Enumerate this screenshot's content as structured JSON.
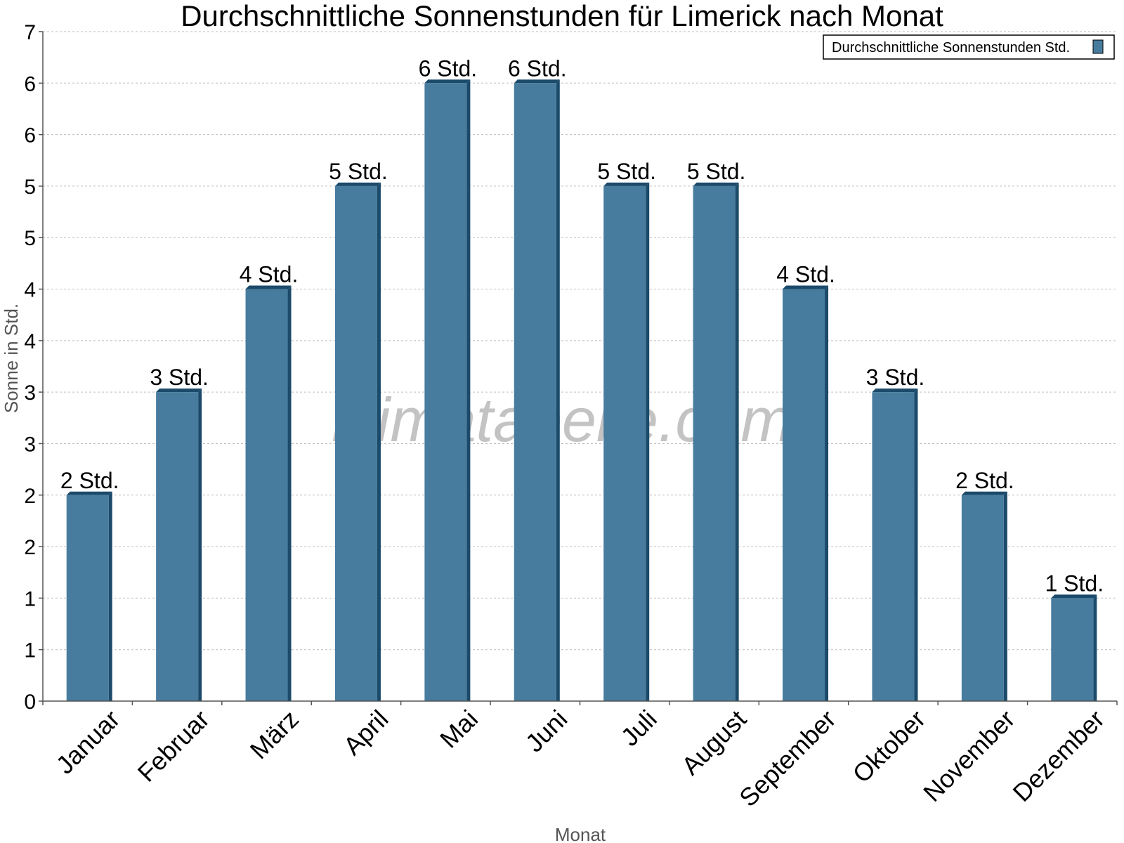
{
  "chart_data": {
    "type": "bar",
    "title": "Durchschnittliche Sonnenstunden für Limerick nach Monat",
    "xlabel": "Monat",
    "ylabel": "Sonne in Std.",
    "ylim": [
      0,
      6.5
    ],
    "ytick_values": [
      0,
      0.5,
      1,
      1.5,
      2,
      2.5,
      3,
      3.5,
      4,
      4.5,
      5,
      5.5,
      6,
      6.5
    ],
    "ytick_labels": [
      "0",
      "1",
      "1",
      "2",
      "2",
      "3",
      "3",
      "4",
      "4",
      "5",
      "5",
      "6",
      "6",
      "7"
    ],
    "grid": true,
    "legend_position": "top-right",
    "categories": [
      "Januar",
      "Februar",
      "März",
      "April",
      "Mai",
      "Juni",
      "Juli",
      "August",
      "September",
      "Oktober",
      "November",
      "Dezember"
    ],
    "series": [
      {
        "name": "Durchschnittliche Sonnenstunden Std.",
        "values": [
          2,
          3,
          4,
          5,
          6,
          6,
          5,
          5,
          4,
          3,
          2,
          1
        ],
        "labels": [
          "2 Std.",
          "3 Std.",
          "4 Std.",
          "5 Std.",
          "6 Std.",
          "6 Std.",
          "5 Std.",
          "5 Std.",
          "4 Std.",
          "3 Std.",
          "2 Std.",
          "1 Std."
        ],
        "color": "#477c9e",
        "shade_color": "#1b4a6a"
      }
    ],
    "watermark": "klimatabelle.com"
  }
}
